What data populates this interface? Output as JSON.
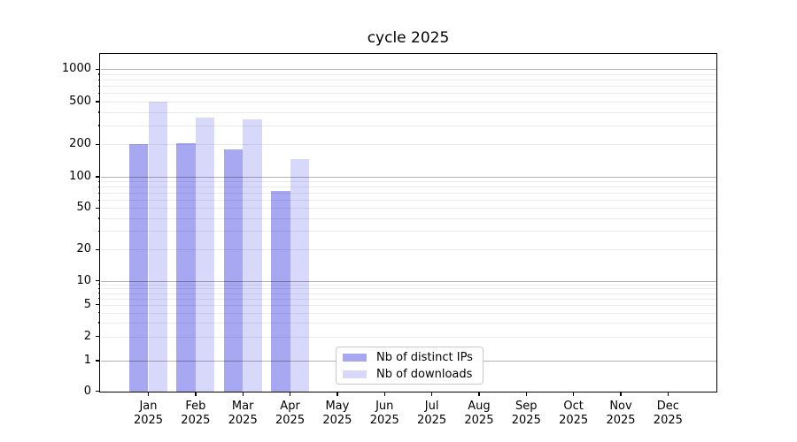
{
  "title": "cycle 2025",
  "colors": {
    "distinct_ips": "#a7a7f2",
    "downloads": "#d8d8fa",
    "grid_major": "#b3b3b3",
    "grid_minor": "#ebebeb",
    "spine": "#000000",
    "background": "#ffffff"
  },
  "legend": {
    "items": [
      {
        "label": "Nb of distinct IPs",
        "color_key": "distinct_ips"
      },
      {
        "label": "Nb of downloads",
        "color_key": "downloads"
      }
    ]
  },
  "y_axis": {
    "tick_labels": [
      "0",
      "1",
      "2",
      "5",
      "10",
      "20",
      "50",
      "100",
      "200",
      "500",
      "1000"
    ],
    "tick_values": [
      0,
      1,
      2,
      5,
      10,
      20,
      50,
      100,
      200,
      500,
      1000
    ]
  },
  "x_axis": {
    "months": [
      "Jan",
      "Feb",
      "Mar",
      "Apr",
      "May",
      "Jun",
      "Jul",
      "Aug",
      "Sep",
      "Oct",
      "Nov",
      "Dec"
    ],
    "year": "2025"
  },
  "chart_data": {
    "type": "bar",
    "title": "cycle 2025",
    "xlabel": "",
    "ylabel": "",
    "yscale": "symlog",
    "ylim": [
      0,
      1400
    ],
    "grid": true,
    "legend_position": "lower center",
    "categories": [
      "Jan 2025",
      "Feb 2025",
      "Mar 2025",
      "Apr 2025",
      "May 2025",
      "Jun 2025",
      "Jul 2025",
      "Aug 2025",
      "Sep 2025",
      "Oct 2025",
      "Nov 2025",
      "Dec 2025"
    ],
    "series": [
      {
        "name": "Nb of distinct IPs",
        "color_key": "distinct_ips",
        "values": [
          200,
          204,
          180,
          73,
          null,
          null,
          null,
          null,
          null,
          null,
          null,
          null
        ]
      },
      {
        "name": "Nb of downloads",
        "color_key": "downloads",
        "values": [
          500,
          356,
          341,
          147,
          null,
          null,
          null,
          null,
          null,
          null,
          null,
          null
        ]
      }
    ]
  }
}
